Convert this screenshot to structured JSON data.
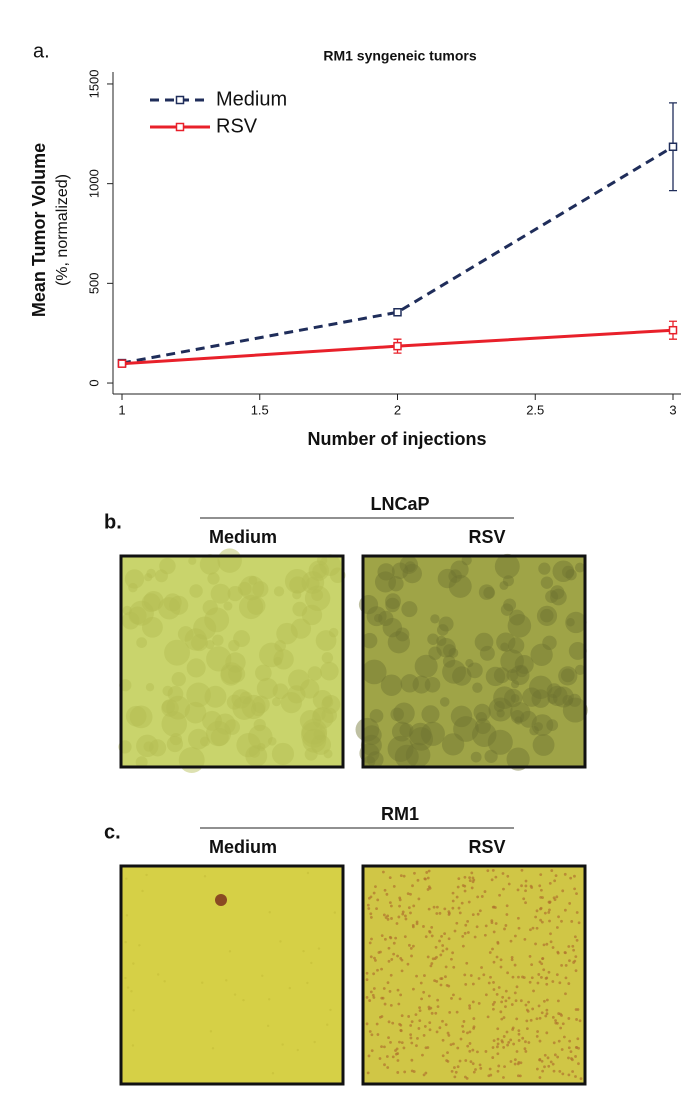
{
  "chart_data": {
    "type": "line",
    "panel_label": "a.",
    "title": "RM1 syngeneic tumors",
    "x_label": "Number of injections",
    "y_label": "Mean Tumor Volume",
    "y_label_sub": "(%, normalized)",
    "x": [
      1,
      2,
      3
    ],
    "series": [
      {
        "name": "Medium",
        "color": "#1f2d5a",
        "line_style": "dashed",
        "values": [
          100,
          355,
          1185
        ],
        "errors": [
          0,
          15,
          220
        ]
      },
      {
        "name": "RSV",
        "color": "#e8202a",
        "line_style": "solid",
        "values": [
          97,
          185,
          265
        ],
        "errors": [
          0,
          35,
          45
        ]
      }
    ],
    "xlim": [
      1,
      3
    ],
    "ylim": [
      -55,
      1560
    ],
    "xticks": [
      1,
      1.5,
      2,
      2.5,
      3
    ],
    "yticks": [
      0,
      500,
      1000,
      1500
    ],
    "legend": "upper left"
  },
  "panels": [
    {
      "label": "b.",
      "title": "LNCaP",
      "captions": [
        "Medium",
        "RSV"
      ]
    },
    {
      "label": "c.",
      "title": "RM1",
      "captions": [
        "Medium",
        "RSV"
      ]
    }
  ]
}
